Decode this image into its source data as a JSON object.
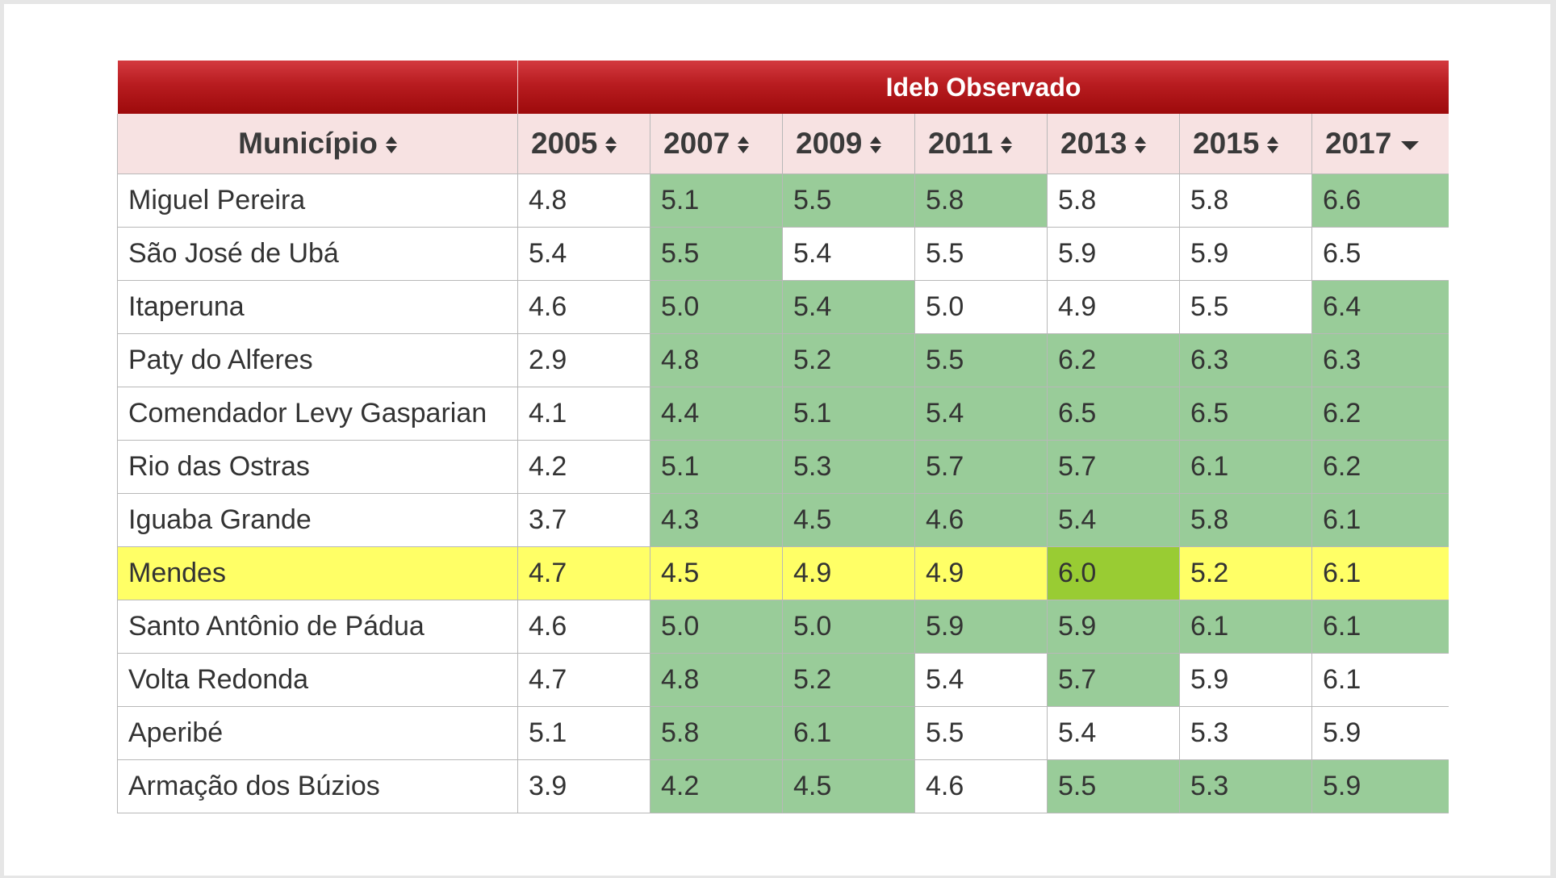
{
  "table": {
    "group_header": "Ideb Observado",
    "columns": [
      "Município",
      "2005",
      "2007",
      "2009",
      "2011",
      "2013",
      "2015",
      "2017"
    ],
    "sorted_column": "2017",
    "sort_direction": "descending",
    "rows": [
      {
        "municipio": "Miguel Pereira",
        "values": [
          "4.8",
          "5.1",
          "5.5",
          "5.8",
          "5.8",
          "5.8",
          "6.6"
        ],
        "highlight": [
          "white",
          "green",
          "green",
          "green",
          "white",
          "white",
          "green"
        ]
      },
      {
        "municipio": "São José de Ubá",
        "values": [
          "5.4",
          "5.5",
          "5.4",
          "5.5",
          "5.9",
          "5.9",
          "6.5"
        ],
        "highlight": [
          "white",
          "green",
          "white",
          "white",
          "white",
          "white",
          "white"
        ]
      },
      {
        "municipio": "Itaperuna",
        "values": [
          "4.6",
          "5.0",
          "5.4",
          "5.0",
          "4.9",
          "5.5",
          "6.4"
        ],
        "highlight": [
          "white",
          "green",
          "green",
          "white",
          "white",
          "white",
          "green"
        ]
      },
      {
        "municipio": "Paty do Alferes",
        "values": [
          "2.9",
          "4.8",
          "5.2",
          "5.5",
          "6.2",
          "6.3",
          "6.3"
        ],
        "highlight": [
          "white",
          "green",
          "green",
          "green",
          "green",
          "green",
          "green"
        ]
      },
      {
        "municipio": "Comendador Levy Gasparian",
        "values": [
          "4.1",
          "4.4",
          "5.1",
          "5.4",
          "6.5",
          "6.5",
          "6.2"
        ],
        "highlight": [
          "white",
          "green",
          "green",
          "green",
          "green",
          "green",
          "green"
        ]
      },
      {
        "municipio": "Rio das Ostras",
        "values": [
          "4.2",
          "5.1",
          "5.3",
          "5.7",
          "5.7",
          "6.1",
          "6.2"
        ],
        "highlight": [
          "white",
          "green",
          "green",
          "green",
          "green",
          "green",
          "green"
        ]
      },
      {
        "municipio": "Iguaba Grande",
        "values": [
          "3.7",
          "4.3",
          "4.5",
          "4.6",
          "5.4",
          "5.8",
          "6.1"
        ],
        "highlight": [
          "white",
          "green",
          "green",
          "green",
          "green",
          "green",
          "green"
        ]
      },
      {
        "municipio": "Mendes",
        "values": [
          "4.7",
          "4.5",
          "4.9",
          "4.9",
          "6.0",
          "5.2",
          "6.1"
        ],
        "row_highlight": "yellow",
        "highlight": [
          "yellow",
          "yellow",
          "yellow",
          "yellow",
          "dgreen",
          "yellow",
          "yellow"
        ]
      },
      {
        "municipio": "Santo Antônio de Pádua",
        "values": [
          "4.6",
          "5.0",
          "5.0",
          "5.9",
          "5.9",
          "6.1",
          "6.1"
        ],
        "highlight": [
          "white",
          "green",
          "green",
          "green",
          "green",
          "green",
          "green"
        ]
      },
      {
        "municipio": "Volta Redonda",
        "values": [
          "4.7",
          "4.8",
          "5.2",
          "5.4",
          "5.7",
          "5.9",
          "6.1"
        ],
        "highlight": [
          "white",
          "green",
          "green",
          "white",
          "green",
          "white",
          "white"
        ]
      },
      {
        "municipio": "Aperibé",
        "values": [
          "5.1",
          "5.8",
          "6.1",
          "5.5",
          "5.4",
          "5.3",
          "5.9"
        ],
        "highlight": [
          "white",
          "green",
          "green",
          "white",
          "white",
          "white",
          "white"
        ]
      },
      {
        "municipio": "Armação dos Búzios",
        "values": [
          "3.9",
          "4.2",
          "4.5",
          "4.6",
          "5.5",
          "5.3",
          "5.9"
        ],
        "highlight": [
          "white",
          "green",
          "green",
          "white",
          "green",
          "green",
          "green"
        ]
      }
    ]
  },
  "colors": {
    "header_red": "#b81c20",
    "header_pink": "#f7e2e2",
    "meta_green": "#99cc99",
    "selected_yellow": "#ffff66",
    "selected_green": "#99cc33"
  }
}
